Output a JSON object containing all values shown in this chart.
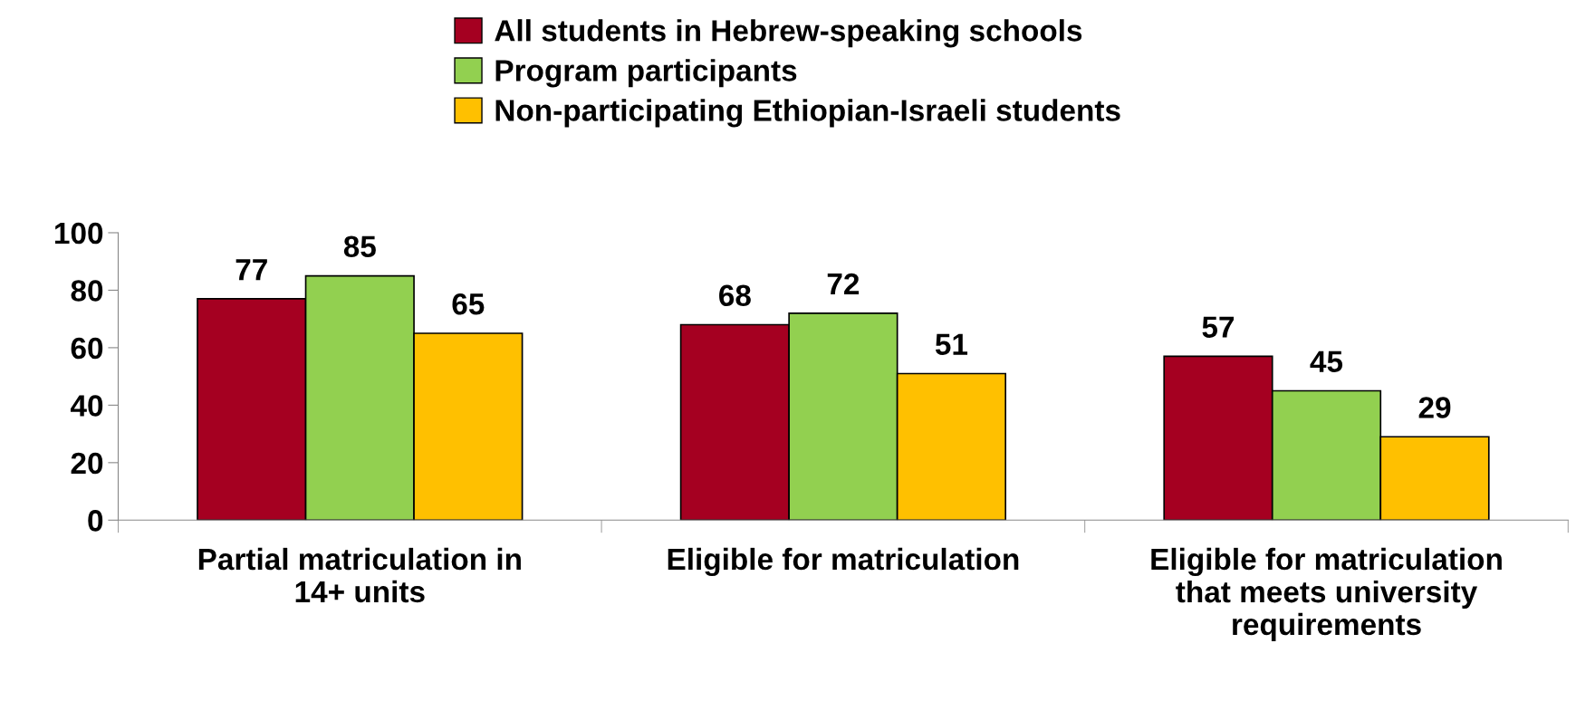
{
  "chart_data": {
    "type": "bar",
    "categories": [
      "Partial matriculation in\n14+ units",
      "Eligible for matriculation",
      "Eligible for matriculation\nthat meets university\nrequirements"
    ],
    "series": [
      {
        "name": "All students in Hebrew-speaking schools",
        "color": "#a50021",
        "values": [
          77,
          68,
          57
        ]
      },
      {
        "name": "Program participants",
        "color": "#92d050",
        "values": [
          85,
          72,
          45
        ]
      },
      {
        "name": "Non-participating Ethiopian-Israeli students",
        "color": "#ffc000",
        "values": [
          65,
          51,
          29
        ]
      }
    ],
    "ylim": [
      0,
      100
    ],
    "yticks": [
      0,
      20,
      40,
      60,
      80,
      100
    ],
    "data_labels": true,
    "grid": false,
    "legend": "top"
  }
}
